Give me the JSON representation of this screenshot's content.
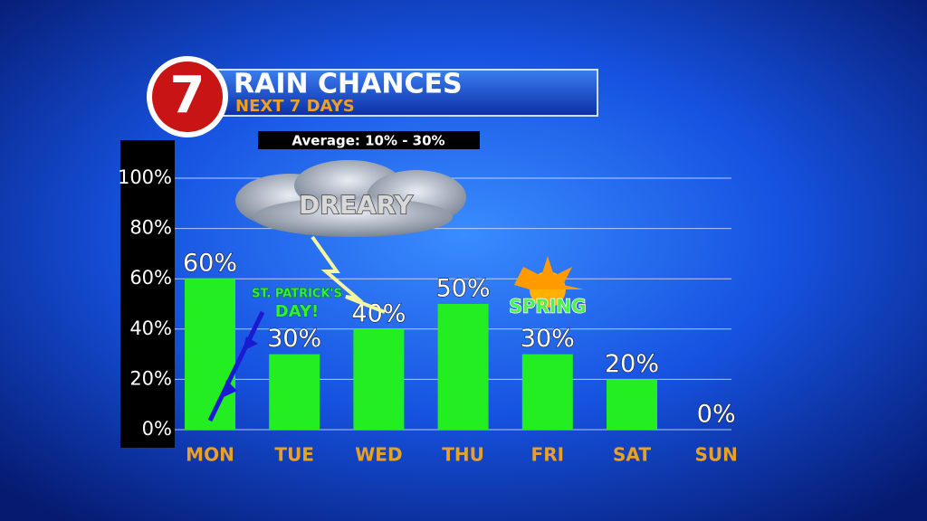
{
  "chart_data": {
    "type": "bar",
    "logo": "7",
    "title": "RAIN CHANCES",
    "subtitle": "NEXT 7 DAYS",
    "annotations": [
      "Average: 10% - 30%",
      "DREARY",
      "ST. PATRICK'S",
      "DAY!",
      "SPRING"
    ],
    "categories": [
      "MON",
      "TUE",
      "WED",
      "THU",
      "FRI",
      "SAT",
      "SUN"
    ],
    "values": [
      60,
      30,
      40,
      50,
      30,
      20,
      0
    ],
    "value_labels": [
      "60%",
      "30%",
      "40%",
      "50%",
      "30%",
      "20%",
      "0%"
    ],
    "color": "#22ee22",
    "ylim": [
      0,
      100
    ],
    "yticks": [
      {
        "value": 0,
        "label": "0%"
      },
      {
        "value": 20,
        "label": "20%"
      },
      {
        "value": 40,
        "label": "40%"
      },
      {
        "value": 60,
        "label": "60%"
      },
      {
        "value": 80,
        "label": "80%"
      },
      {
        "value": 100,
        "label": "100%"
      }
    ],
    "grid": true
  }
}
